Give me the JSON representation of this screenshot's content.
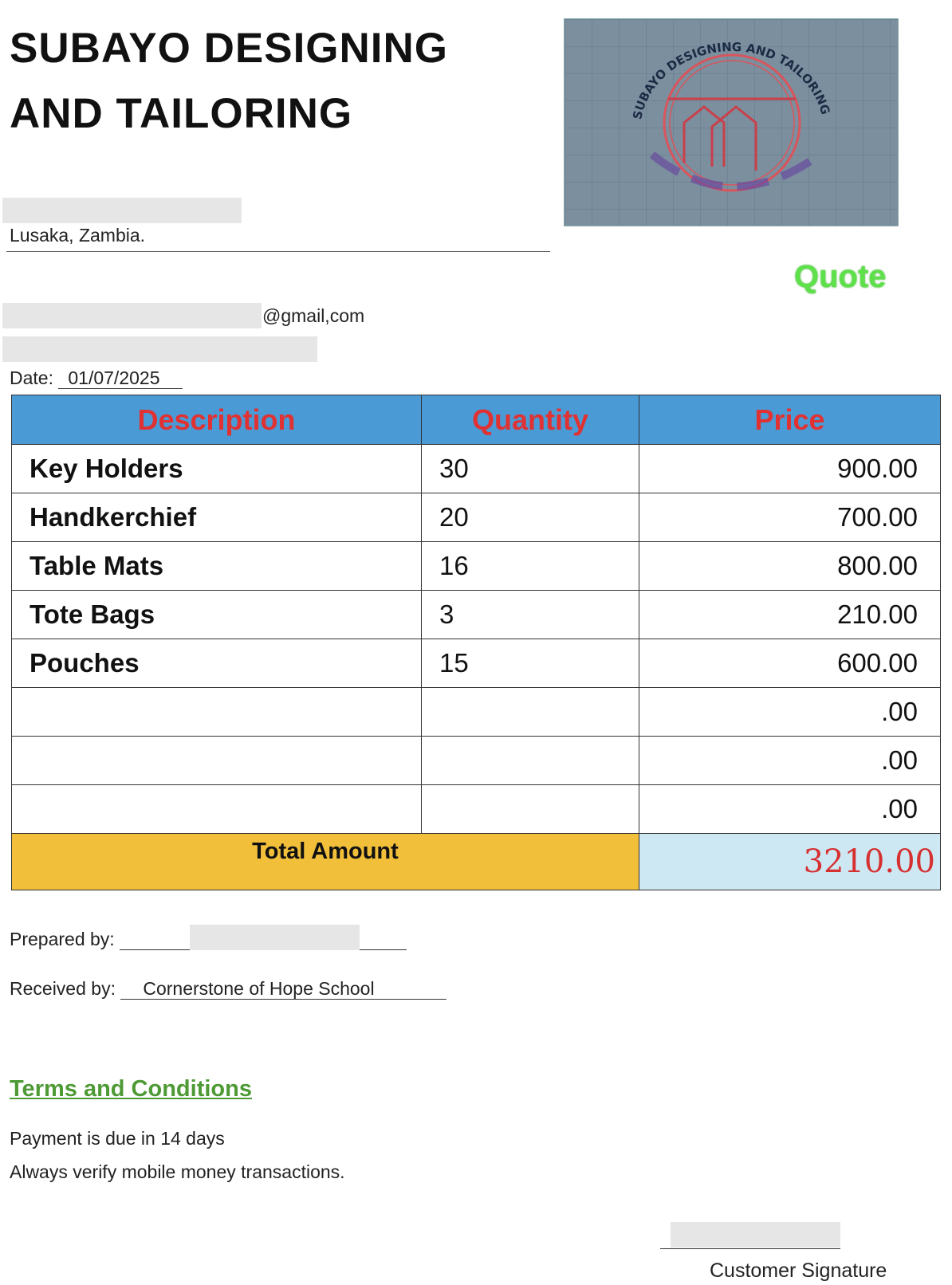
{
  "company": {
    "name_line1": "SUBAYO DESIGNING",
    "name_line2": "AND TAILORING",
    "city": "Lusaka, Zambia.",
    "email_suffix": "@gmail,com"
  },
  "logo": {
    "text": "SUBAYO DESIGNING AND TAILORING",
    "colors": {
      "background": "#7b8f9e",
      "emblem": "#d9555d",
      "text": "#1c2a44"
    }
  },
  "doc_type": "Quote",
  "date": {
    "label": "Date:",
    "value": "01/07/2025"
  },
  "table": {
    "headers": [
      "Description",
      "Quantity",
      "Price"
    ],
    "rows": [
      {
        "description": "Key Holders",
        "quantity": "30",
        "price": "900.00"
      },
      {
        "description": "Handkerchief",
        "quantity": "20",
        "price": "700.00"
      },
      {
        "description": "Table Mats",
        "quantity": "16",
        "price": "800.00"
      },
      {
        "description": "Tote Bags",
        "quantity": "3",
        "price": "210.00"
      },
      {
        "description": "Pouches",
        "quantity": "15",
        "price": "600.00"
      },
      {
        "description": "",
        "quantity": "",
        "price": ".00"
      },
      {
        "description": "",
        "quantity": "",
        "price": ".00"
      },
      {
        "description": "",
        "quantity": "",
        "price": ".00"
      }
    ],
    "total_label": "Total Amount",
    "total_value": "3210.00",
    "colors": {
      "header": "#4a9ad6",
      "header_text": "#e03232",
      "total_label_bg": "#f2bf3a",
      "total_value_bg": "#cde8f3",
      "total_value_text": "#d63030"
    }
  },
  "prepared_by": {
    "label": "Prepared by:"
  },
  "received_by": {
    "label": "Received by:",
    "value": "Cornerstone of Hope School"
  },
  "terms": {
    "title": "Terms and Conditions",
    "lines": [
      "Payment is due in 14 days",
      "Always verify mobile money transactions."
    ]
  },
  "signature": {
    "label": "Customer Signature"
  }
}
